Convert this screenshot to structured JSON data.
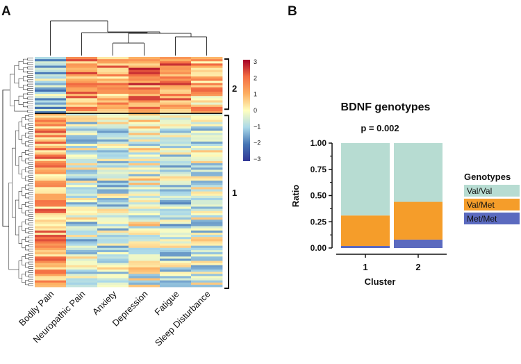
{
  "panels": {
    "a": "A",
    "b": "B"
  },
  "chart_data": [
    {
      "type": "heatmap",
      "columns": [
        "Bodily Pain",
        "Neuropathic Pain",
        "Anxiety",
        "Depression",
        "Fatigue",
        "Sleep Disturbance"
      ],
      "clusters": [
        {
          "label": "2",
          "rows": 26
        },
        {
          "label": "1",
          "rows": 80
        }
      ],
      "cluster_means": {
        "2": [
          -0.9,
          1.4,
          1.2,
          1.6,
          1.5,
          0.9
        ],
        "1": [
          1.2,
          -0.5,
          -0.5,
          -0.2,
          -0.6,
          -0.4
        ]
      },
      "colorbar": {
        "min": -3,
        "max": 3,
        "ticks": [
          "3",
          "2",
          "1",
          "0",
          "−1",
          "−2",
          "−3"
        ]
      },
      "column_dendrogram": true,
      "row_dendrogram": true
    },
    {
      "type": "bar",
      "stacked": true,
      "title": "BDNF genotypes",
      "subtitle": "p = 0.002",
      "xlabel": "Cluster",
      "ylabel": "Ratio",
      "categories": [
        "1",
        "2"
      ],
      "ylim": [
        0,
        1
      ],
      "yticks": [
        "0.00",
        "0.25",
        "0.50",
        "0.75",
        "1.00"
      ],
      "series": [
        {
          "name": "Met/Met",
          "values": [
            0.02,
            0.08
          ],
          "color": "#5b6abf"
        },
        {
          "name": "Val/Met",
          "values": [
            0.29,
            0.36
          ],
          "color": "#f59d2a"
        },
        {
          "name": "Val/Val",
          "values": [
            0.69,
            0.56
          ],
          "color": "#b7dcd2"
        }
      ],
      "legend": {
        "title": "Genotypes",
        "order": [
          "Val/Val",
          "Val/Met",
          "Met/Met"
        ],
        "position": "right"
      }
    }
  ]
}
